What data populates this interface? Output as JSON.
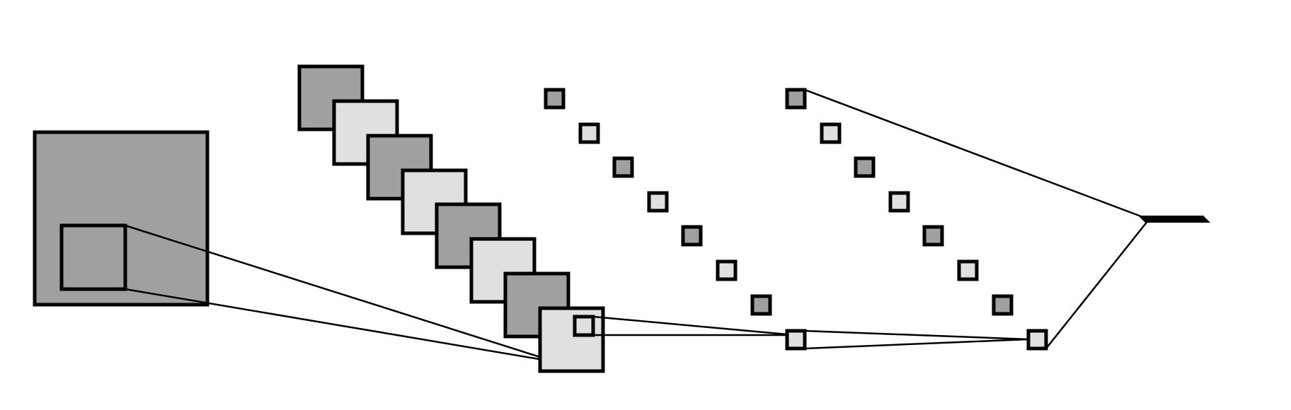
{
  "diagram": {
    "description_text": "",
    "colors": {
      "background": "#ffffff",
      "stroke": "#000000",
      "dark_fill": "#a0a0a0",
      "light_fill": "#e0e0e0"
    },
    "stages": [
      {
        "id": "input",
        "kind": "single-large-square",
        "fill": "dark"
      },
      {
        "id": "conv-feature-maps",
        "kind": "stacked-squares",
        "count": 8,
        "fill_pattern": [
          "dark",
          "light"
        ]
      },
      {
        "id": "pooled-units",
        "kind": "diagonal-small-squares",
        "count": 7,
        "fill_pattern": [
          "dark",
          "light"
        ]
      },
      {
        "id": "hidden-units",
        "kind": "diagonal-small-squares",
        "count": 7,
        "fill_pattern": [
          "dark",
          "light"
        ]
      },
      {
        "id": "output",
        "kind": "bar",
        "count": 1
      }
    ]
  }
}
